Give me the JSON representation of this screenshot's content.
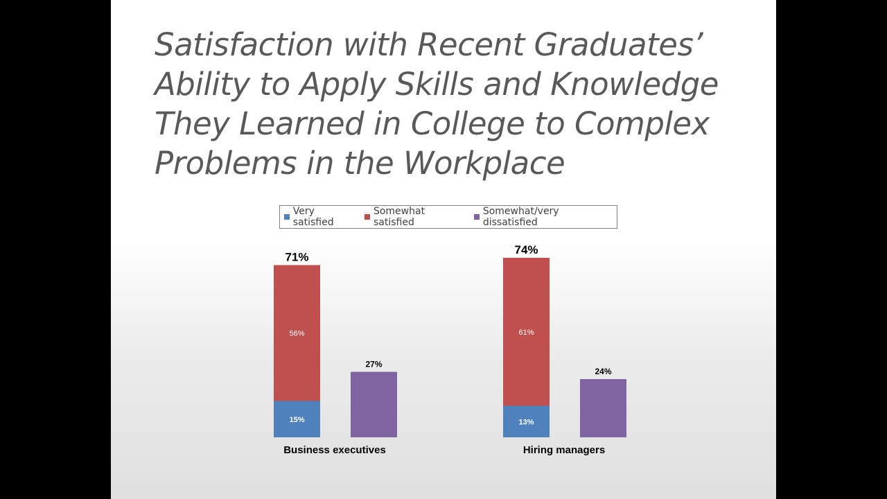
{
  "title_lines": [
    "Satisfaction with Recent Graduates’",
    "Ability to Apply Skills and Knowledge",
    "They Learned in College to Complex",
    "Problems in the Workplace"
  ],
  "colors": {
    "very_satisfied": "#4f81bd",
    "somewhat_satisfied": "#c0504d",
    "dissatisfied": "#8064a2"
  },
  "chart_data": {
    "type": "bar",
    "stacked": true,
    "title": "Satisfaction with Recent Graduates’ Ability to Apply Skills and Knowledge They Learned in College to Complex Problems in the Workplace",
    "categories": [
      "Business executives",
      "Hiring managers"
    ],
    "legend": [
      "Very satisfied",
      "Somewhat satisfied",
      "Somewhat/very dissatisfied"
    ],
    "legend_position": "top",
    "groups": [
      {
        "category": "Business executives",
        "satisfied_total_label": "71%",
        "very_satisfied": 15,
        "very_satisfied_label": "15%",
        "somewhat_satisfied": 56,
        "somewhat_satisfied_label": "56%",
        "dissatisfied": 27,
        "dissatisfied_label": "27%"
      },
      {
        "category": "Hiring managers",
        "satisfied_total_label": "74%",
        "very_satisfied": 13,
        "very_satisfied_label": "13%",
        "somewhat_satisfied": 61,
        "somewhat_satisfied_label": "61%",
        "dissatisfied": 24,
        "dissatisfied_label": "24%"
      }
    ],
    "ylim": [
      0,
      80
    ],
    "grid": false
  }
}
